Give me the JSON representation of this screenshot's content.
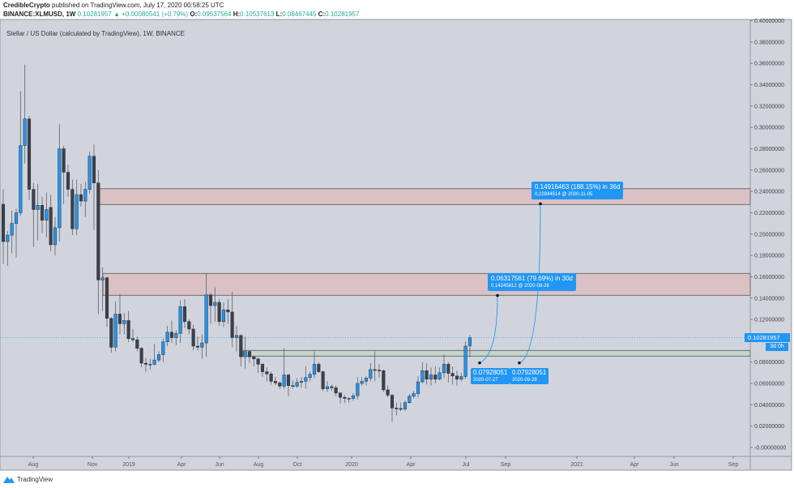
{
  "header": {
    "author": "CredibleCrypto",
    "published": "published on TradingView.com, July 17, 2020 00:58:25 UTC",
    "symbol": "BINANCE:XLMUSD, 1W",
    "last": "0.10281957",
    "change": "+0.00080541 (+0.79%)",
    "o_label": "O:",
    "o": "0.09537564",
    "h_label": "H:",
    "h": "0.10537613",
    "l_label": "L:",
    "l": "0.08467445",
    "c_label": "C:",
    "c": "0.10281957"
  },
  "legend": "Stellar / US Dollar (calculated by TradingView), 1W, BINANCE",
  "price_tag": "0.10281957",
  "countdown": "3d 0h",
  "footer": {
    "brand": "TradingView"
  },
  "colors": {
    "up": "#2196f3",
    "down": "#3d414b",
    "background": "#d1d4dc",
    "resistance_zone": "#dcc1c4",
    "support_zone": "#c4d6c8",
    "annotation": "#2196f3"
  },
  "chart_data": {
    "type": "candlestick",
    "title": "Stellar / US Dollar (calculated by TradingView), 1W, BINANCE",
    "ylim": [
      0,
      0.4
    ],
    "y_ticks": [
      "0.40000000",
      "0.38000000",
      "0.36000000",
      "0.34000000",
      "0.32000000",
      "0.30000000",
      "0.28000000",
      "0.26000000",
      "0.24000000",
      "0.22000000",
      "0.20000000",
      "0.18000000",
      "0.16000000",
      "0.14000000",
      "0.12000000",
      "0.08000000",
      "0.06000000",
      "0.04000000",
      "0.02000000",
      "-0.00000000"
    ],
    "y_tick_values": [
      0.4,
      0.38,
      0.36,
      0.34,
      0.32,
      0.3,
      0.28,
      0.26,
      0.24,
      0.22,
      0.2,
      0.18,
      0.16,
      0.14,
      0.12,
      0.08,
      0.06,
      0.04,
      0.02,
      0.0
    ],
    "x_ticks": [
      "Aug",
      "Nov",
      "2019",
      "Apr",
      "Jun",
      "Aug",
      "Oct",
      "2020",
      "Apr",
      "Jul",
      "Sep",
      "2021",
      "Apr",
      "Jun",
      "Sep"
    ],
    "grid": false,
    "last_price": 0.10281957,
    "ohlc": [
      [
        0.228,
        0.242,
        0.172,
        0.193
      ],
      [
        0.193,
        0.203,
        0.17,
        0.199
      ],
      [
        0.199,
        0.222,
        0.182,
        0.21
      ],
      [
        0.21,
        0.224,
        0.178,
        0.22
      ],
      [
        0.22,
        0.334,
        0.217,
        0.283
      ],
      [
        0.283,
        0.359,
        0.266,
        0.308
      ],
      [
        0.308,
        0.311,
        0.232,
        0.242
      ],
      [
        0.242,
        0.248,
        0.188,
        0.223
      ],
      [
        0.223,
        0.247,
        0.194,
        0.227
      ],
      [
        0.227,
        0.235,
        0.201,
        0.213
      ],
      [
        0.213,
        0.239,
        0.197,
        0.223
      ],
      [
        0.225,
        0.237,
        0.184,
        0.19
      ],
      [
        0.19,
        0.216,
        0.18,
        0.206
      ],
      [
        0.206,
        0.303,
        0.193,
        0.28
      ],
      [
        0.28,
        0.283,
        0.228,
        0.258
      ],
      [
        0.258,
        0.265,
        0.235,
        0.242
      ],
      [
        0.242,
        0.251,
        0.199,
        0.205
      ],
      [
        0.205,
        0.251,
        0.199,
        0.237
      ],
      [
        0.237,
        0.247,
        0.226,
        0.231
      ],
      [
        0.231,
        0.249,
        0.216,
        0.242
      ],
      [
        0.242,
        0.277,
        0.238,
        0.273
      ],
      [
        0.273,
        0.284,
        0.204,
        0.248
      ],
      [
        0.248,
        0.26,
        0.125,
        0.157
      ],
      [
        0.157,
        0.169,
        0.128,
        0.159
      ],
      [
        0.159,
        0.16,
        0.113,
        0.121
      ],
      [
        0.121,
        0.122,
        0.089,
        0.094
      ],
      [
        0.094,
        0.137,
        0.09,
        0.125
      ],
      [
        0.125,
        0.144,
        0.106,
        0.116
      ],
      [
        0.116,
        0.126,
        0.106,
        0.119
      ],
      [
        0.119,
        0.128,
        0.099,
        0.102
      ],
      [
        0.102,
        0.111,
        0.099,
        0.101
      ],
      [
        0.101,
        0.104,
        0.09,
        0.093
      ],
      [
        0.093,
        0.094,
        0.075,
        0.079
      ],
      [
        0.079,
        0.084,
        0.071,
        0.078
      ],
      [
        0.078,
        0.083,
        0.073,
        0.078
      ],
      [
        0.078,
        0.097,
        0.077,
        0.082
      ],
      [
        0.082,
        0.09,
        0.08,
        0.087
      ],
      [
        0.087,
        0.102,
        0.08,
        0.099
      ],
      [
        0.099,
        0.114,
        0.095,
        0.108
      ],
      [
        0.108,
        0.119,
        0.098,
        0.103
      ],
      [
        0.103,
        0.11,
        0.096,
        0.107
      ],
      [
        0.107,
        0.138,
        0.098,
        0.132
      ],
      [
        0.132,
        0.139,
        0.112,
        0.118
      ],
      [
        0.118,
        0.12,
        0.106,
        0.111
      ],
      [
        0.111,
        0.115,
        0.091,
        0.095
      ],
      [
        0.095,
        0.104,
        0.091,
        0.094
      ],
      [
        0.094,
        0.106,
        0.083,
        0.098
      ],
      [
        0.098,
        0.163,
        0.085,
        0.143
      ],
      [
        0.143,
        0.145,
        0.116,
        0.133
      ],
      [
        0.133,
        0.15,
        0.118,
        0.136
      ],
      [
        0.136,
        0.139,
        0.114,
        0.118
      ],
      [
        0.118,
        0.136,
        0.113,
        0.129
      ],
      [
        0.129,
        0.139,
        0.116,
        0.127
      ],
      [
        0.127,
        0.146,
        0.094,
        0.103
      ],
      [
        0.103,
        0.114,
        0.09,
        0.105
      ],
      [
        0.105,
        0.106,
        0.076,
        0.085
      ],
      [
        0.085,
        0.104,
        0.074,
        0.09
      ],
      [
        0.09,
        0.091,
        0.079,
        0.085
      ],
      [
        0.085,
        0.086,
        0.076,
        0.083
      ],
      [
        0.083,
        0.084,
        0.07,
        0.078
      ],
      [
        0.078,
        0.079,
        0.066,
        0.071
      ],
      [
        0.071,
        0.075,
        0.062,
        0.069
      ],
      [
        0.069,
        0.071,
        0.059,
        0.062
      ],
      [
        0.062,
        0.066,
        0.0585,
        0.0605
      ],
      [
        0.0605,
        0.062,
        0.055,
        0.0575
      ],
      [
        0.0575,
        0.093,
        0.055,
        0.068
      ],
      [
        0.068,
        0.069,
        0.048,
        0.058
      ],
      [
        0.058,
        0.063,
        0.055,
        0.0575
      ],
      [
        0.0575,
        0.065,
        0.056,
        0.061
      ],
      [
        0.061,
        0.066,
        0.056,
        0.062
      ],
      [
        0.062,
        0.076,
        0.055,
        0.0655
      ],
      [
        0.0655,
        0.071,
        0.062,
        0.0685
      ],
      [
        0.0685,
        0.09,
        0.065,
        0.078
      ],
      [
        0.078,
        0.08,
        0.07,
        0.071
      ],
      [
        0.071,
        0.072,
        0.053,
        0.055
      ],
      [
        0.055,
        0.062,
        0.052,
        0.057
      ],
      [
        0.057,
        0.059,
        0.053,
        0.056
      ],
      [
        0.056,
        0.058,
        0.048,
        0.051
      ],
      [
        0.051,
        0.052,
        0.041,
        0.047
      ],
      [
        0.047,
        0.049,
        0.042,
        0.046
      ],
      [
        0.046,
        0.047,
        0.042,
        0.046
      ],
      [
        0.046,
        0.051,
        0.044,
        0.0485
      ],
      [
        0.0485,
        0.066,
        0.045,
        0.06
      ],
      [
        0.06,
        0.066,
        0.058,
        0.062
      ],
      [
        0.062,
        0.067,
        0.058,
        0.065
      ],
      [
        0.065,
        0.079,
        0.062,
        0.073
      ],
      [
        0.073,
        0.09,
        0.062,
        0.0725
      ],
      [
        0.0725,
        0.078,
        0.0655,
        0.072
      ],
      [
        0.072,
        0.073,
        0.052,
        0.054
      ],
      [
        0.054,
        0.058,
        0.047,
        0.049
      ],
      [
        0.049,
        0.05,
        0.024,
        0.037
      ],
      [
        0.037,
        0.042,
        0.03,
        0.0365
      ],
      [
        0.0365,
        0.042,
        0.034,
        0.036
      ],
      [
        0.036,
        0.044,
        0.034,
        0.042
      ],
      [
        0.042,
        0.05,
        0.041,
        0.048
      ],
      [
        0.048,
        0.053,
        0.046,
        0.0505
      ],
      [
        0.0505,
        0.067,
        0.047,
        0.0615
      ],
      [
        0.0615,
        0.08,
        0.06,
        0.072
      ],
      [
        0.072,
        0.079,
        0.059,
        0.064
      ],
      [
        0.064,
        0.075,
        0.058,
        0.068
      ],
      [
        0.068,
        0.076,
        0.06,
        0.064
      ],
      [
        0.064,
        0.075,
        0.063,
        0.07
      ],
      [
        0.07,
        0.087,
        0.065,
        0.078
      ],
      [
        0.078,
        0.08,
        0.061,
        0.0695
      ],
      [
        0.0695,
        0.076,
        0.059,
        0.067
      ],
      [
        0.067,
        0.072,
        0.058,
        0.064
      ],
      [
        0.064,
        0.07,
        0.062,
        0.0665
      ],
      [
        0.0665,
        0.0995,
        0.064,
        0.095
      ],
      [
        0.09537564,
        0.10537613,
        0.08467445,
        0.10281957
      ]
    ],
    "zones": [
      {
        "kind": "resistance",
        "top": 0.2426,
        "bottom": 0.2277
      },
      {
        "kind": "resistance",
        "top": 0.1631,
        "bottom": 0.1426
      },
      {
        "kind": "support",
        "top": 0.0909,
        "bottom": 0.0856
      }
    ],
    "projections": [
      {
        "start_price": "0.07928051",
        "start_date": "2020-07-27",
        "change": "0.06317561 (79.69%) in 30d",
        "target": "0.14245612 @ 2020-08-28",
        "start_value": 0.07928051,
        "target_value": 0.14245612
      },
      {
        "start_price": "0.07928051",
        "start_date": "2020-09-28",
        "change": "0.14916463 (188.15%) in 36d",
        "target": "0.22844514 @ 2020-11-05",
        "start_value": 0.07928051,
        "target_value": 0.22844514
      }
    ]
  }
}
